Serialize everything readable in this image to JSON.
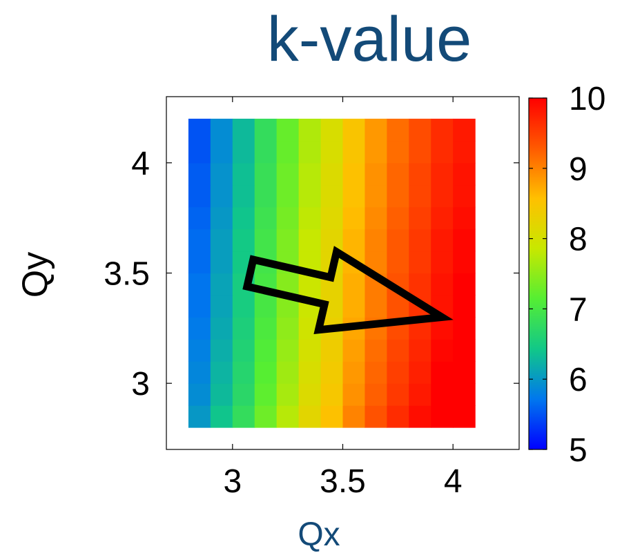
{
  "chart_data": {
    "type": "heatmap",
    "title": "k-value",
    "xlabel": "Qx",
    "ylabel": "Qy",
    "x_centers": [
      2.85,
      2.95,
      3.05,
      3.15,
      3.25,
      3.35,
      3.45,
      3.55,
      3.65,
      3.75,
      3.85,
      3.95,
      4.05
    ],
    "y_centers": [
      2.85,
      2.95,
      3.05,
      3.15,
      3.25,
      3.35,
      3.45,
      3.55,
      3.65,
      3.75,
      3.85,
      3.95,
      4.05,
      4.15
    ],
    "cell_width": 0.1,
    "cell_height": 0.1,
    "z_by_column": [
      5.7,
      6.1,
      6.5,
      7.0,
      7.45,
      7.9,
      8.25,
      8.7,
      9.05,
      9.35,
      9.6,
      9.85,
      10.0
    ],
    "z_row_shift": [
      0.3,
      0.2,
      0.15,
      0.1,
      0.05,
      0.0,
      0.0,
      -0.05,
      -0.05,
      -0.1,
      -0.15,
      -0.15,
      -0.2,
      -0.2
    ],
    "xlim": [
      2.7,
      4.3
    ],
    "ylim": [
      2.7,
      4.3
    ],
    "xticks": [
      "3",
      "3.5",
      "4"
    ],
    "yticks": [
      "3",
      "3.5",
      "4"
    ],
    "colorbar": {
      "min": 5,
      "max": 10,
      "ticks": [
        "5",
        "6",
        "7",
        "8",
        "9",
        "10"
      ],
      "colors": [
        "#0000ff",
        "#0077ee",
        "#11c888",
        "#55ee33",
        "#c8e800",
        "#ffc000",
        "#ff5a00",
        "#ff0000"
      ]
    },
    "annotation": {
      "type": "arrow",
      "from": [
        3.08,
        3.5
      ],
      "to": [
        3.95,
        3.3
      ],
      "stroke": "#000000",
      "fill": "none"
    },
    "grid": false
  }
}
